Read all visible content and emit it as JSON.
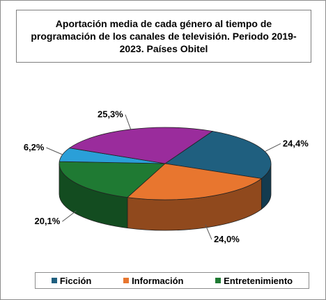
{
  "chart_data": {
    "type": "pie",
    "title": "Aportación media de cada género al tiempo de programación de los canales de televisión.  Periodo 2019-2023. Países Obitel",
    "categories": [
      "Ficción",
      "Información",
      "Entretenimiento",
      "",
      ""
    ],
    "values": [
      24.4,
      24.0,
      20.1,
      6.2,
      25.3
    ],
    "labels": [
      "24,4%",
      "24,0%",
      "20,1%",
      "6,2%",
      "25,3%"
    ],
    "colors": [
      "#1f5f7f",
      "#e8762f",
      "#1f7a33",
      "#2a9fd8",
      "#9a2c9c"
    ],
    "legend": {
      "position": "bottom",
      "entries": [
        {
          "label": "Ficción",
          "color": "#1f5f7f"
        },
        {
          "label": "Información",
          "color": "#e8762f"
        },
        {
          "label": "Entretenimiento",
          "color": "#1f7a33"
        }
      ]
    },
    "three_d": true
  }
}
